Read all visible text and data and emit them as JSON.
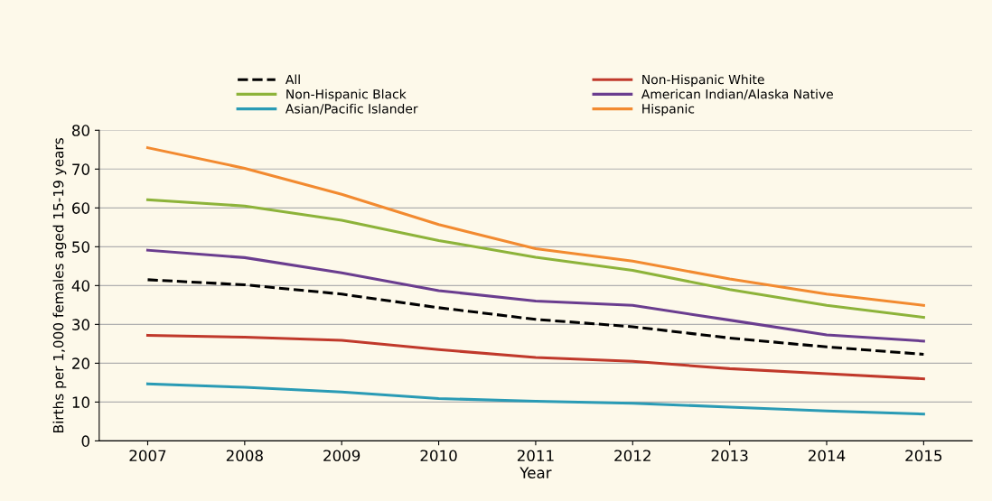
{
  "chart_data": {
    "type": "line",
    "xlabel": "Year",
    "ylabel": "Births per 1,000 females aged 15-19 years",
    "categories": [
      "2007",
      "2008",
      "2009",
      "2010",
      "2011",
      "2012",
      "2013",
      "2014",
      "2015"
    ],
    "ylim": [
      0,
      80
    ],
    "yticks": [
      0,
      10,
      20,
      30,
      40,
      50,
      60,
      70,
      80
    ],
    "grid": "y",
    "legend": "top",
    "marker": "none",
    "series": [
      {
        "name": "All",
        "color": "#000000",
        "line_style": "dashed",
        "values": [
          41.5,
          40.2,
          37.8,
          34.3,
          31.3,
          29.4,
          26.5,
          24.2,
          22.3
        ]
      },
      {
        "name": "Non-Hispanic White",
        "color": "#c0392b",
        "values": [
          27.2,
          26.7,
          25.9,
          23.5,
          21.5,
          20.5,
          18.6,
          17.3,
          16.0
        ]
      },
      {
        "name": "Non-Hispanic Black",
        "color": "#8db33a",
        "values": [
          62.1,
          60.5,
          56.8,
          51.6,
          47.3,
          43.9,
          39.0,
          34.9,
          31.8
        ]
      },
      {
        "name": "American Indian/Alaska Native",
        "color": "#6a3d8f",
        "values": [
          49.1,
          47.2,
          43.3,
          38.7,
          36.0,
          34.9,
          31.1,
          27.3,
          25.7
        ]
      },
      {
        "name": "Asian/Pacific Islander",
        "color": "#2a9bb5",
        "values": [
          14.7,
          13.8,
          12.6,
          10.9,
          10.2,
          9.7,
          8.7,
          7.7,
          6.9
        ]
      },
      {
        "name": "Hispanic",
        "color": "#f28a30",
        "values": [
          75.5,
          70.2,
          63.5,
          55.7,
          49.5,
          46.3,
          41.7,
          37.8,
          34.9
        ]
      }
    ]
  }
}
